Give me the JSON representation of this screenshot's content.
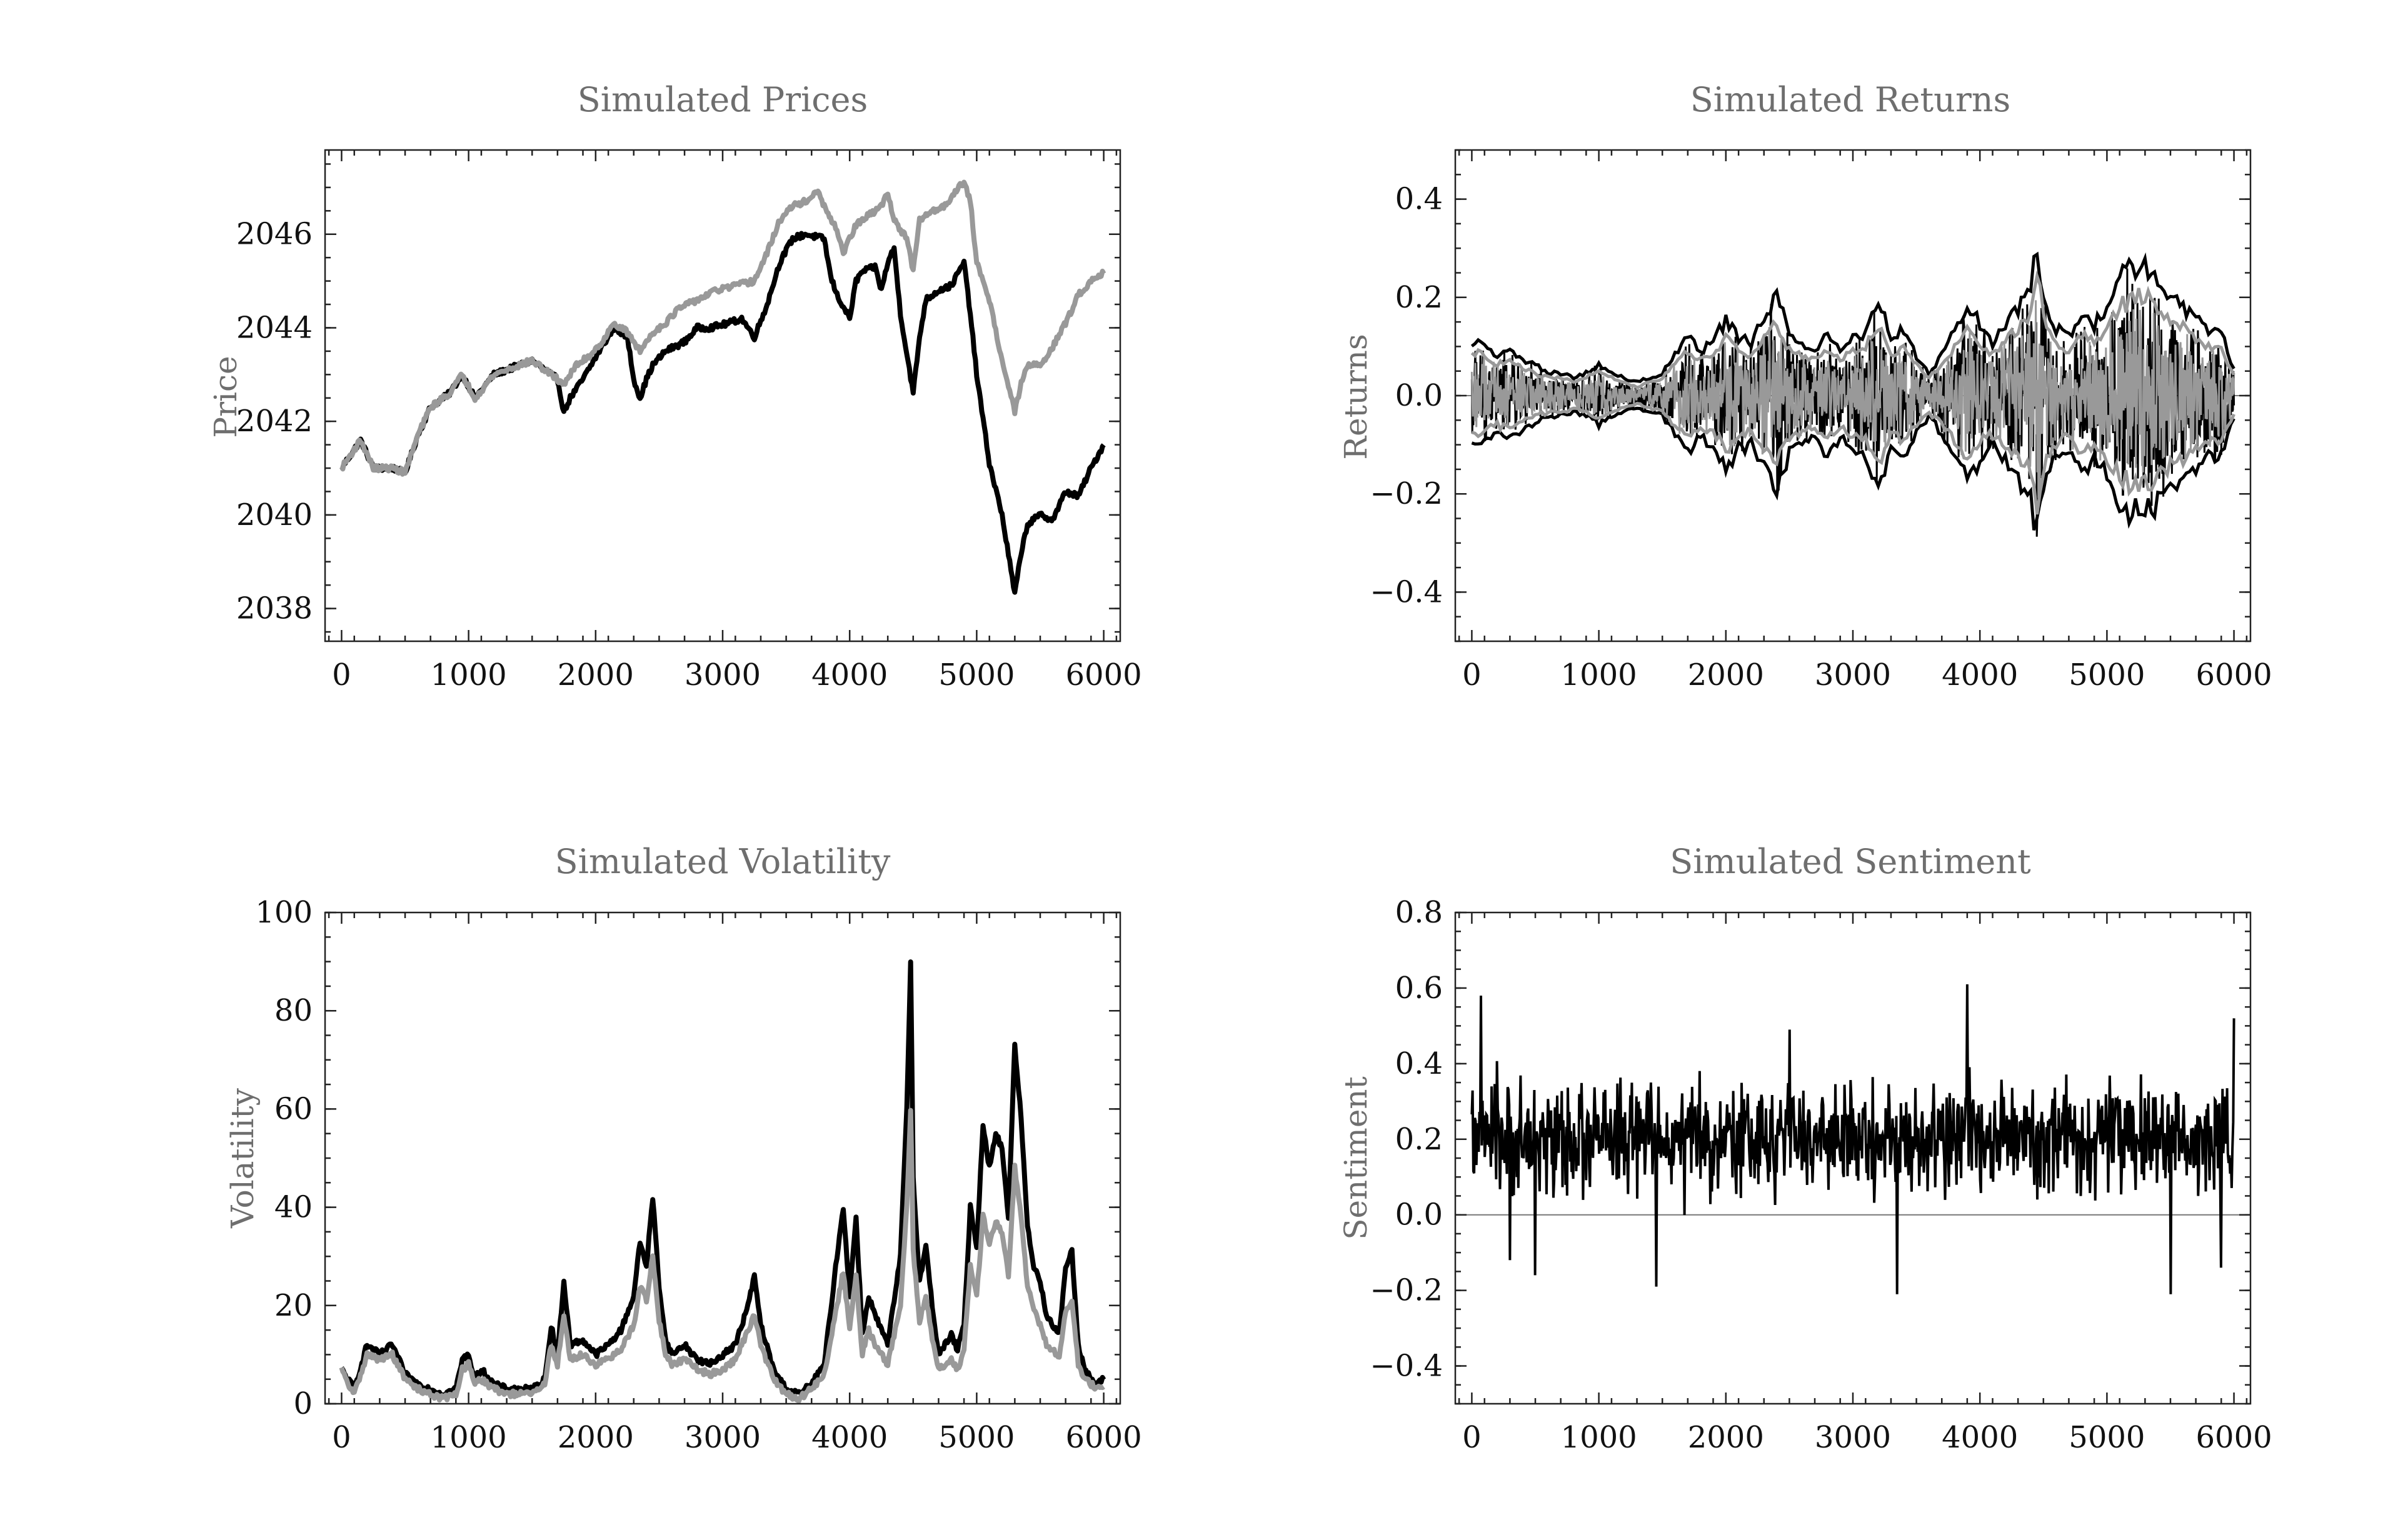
{
  "figure": {
    "panels": [
      {
        "id": "prices",
        "title": "Simulated Prices",
        "ylabel": "Price"
      },
      {
        "id": "returns",
        "title": "Simulated Returns",
        "ylabel": "Returns"
      },
      {
        "id": "volatility",
        "title": "Simulated Volatility",
        "ylabel": "Volatility"
      },
      {
        "id": "sentiment",
        "title": "Simulated Sentiment",
        "ylabel": "Sentiment"
      }
    ]
  },
  "chart_data": [
    {
      "id": "prices",
      "type": "line",
      "title": "Simulated Prices",
      "xlabel": "",
      "ylabel": "Price",
      "xlim": [
        -130,
        6130
      ],
      "ylim": [
        2037.3,
        2047.8
      ],
      "xticks": [
        0,
        1000,
        2000,
        3000,
        4000,
        5000,
        6000
      ],
      "yticks": [
        2038,
        2040,
        2042,
        2044,
        2046
      ],
      "grid": false,
      "colors": {
        "black_series": "#000000",
        "gray_series": "#999999"
      },
      "series": [
        {
          "color": "#000000",
          "x": [
            0,
            150,
            250,
            400,
            500,
            600,
            700,
            850,
            950,
            1050,
            1200,
            1300,
            1400,
            1500,
            1650,
            1700,
            1750,
            1800,
            1900,
            2050,
            2150,
            2250,
            2300,
            2350,
            2400,
            2450,
            2550,
            2700,
            2800,
            2900,
            3050,
            3150,
            3250,
            3350,
            3450,
            3550,
            3650,
            3800,
            3850,
            3900,
            4000,
            4050,
            4100,
            4200,
            4250,
            4300,
            4350,
            4400,
            4500,
            4550,
            4600,
            4700,
            4800,
            4900,
            4950,
            5000,
            5100,
            5200,
            5300,
            5350,
            5400,
            5500,
            5600,
            5700,
            5800,
            5900,
            6000
          ],
          "y": [
            2041.0,
            2041.6,
            2041.0,
            2041.0,
            2040.9,
            2041.7,
            2042.3,
            2042.6,
            2043.0,
            2042.5,
            2043.0,
            2043.1,
            2043.2,
            2043.3,
            2043.0,
            2042.9,
            2042.2,
            2042.5,
            2042.9,
            2043.6,
            2044.0,
            2043.8,
            2042.9,
            2042.5,
            2042.9,
            2043.2,
            2043.5,
            2043.7,
            2044.0,
            2044.0,
            2044.1,
            2044.2,
            2043.8,
            2044.5,
            2045.4,
            2045.9,
            2046.0,
            2045.9,
            2045.1,
            2044.7,
            2044.2,
            2045.0,
            2045.2,
            2045.3,
            2044.8,
            2045.4,
            2045.7,
            2044.3,
            2042.6,
            2043.8,
            2044.6,
            2044.8,
            2044.9,
            2045.4,
            2044.3,
            2043.0,
            2041.1,
            2040.0,
            2038.3,
            2039.2,
            2039.8,
            2040.0,
            2039.9,
            2040.5,
            2040.4,
            2041.0,
            2041.5
          ]
        },
        {
          "color": "#999999",
          "x": [
            0,
            150,
            250,
            400,
            500,
            600,
            700,
            850,
            950,
            1050,
            1200,
            1300,
            1400,
            1500,
            1650,
            1750,
            1850,
            1950,
            2050,
            2150,
            2250,
            2350,
            2450,
            2550,
            2650,
            2800,
            2950,
            3100,
            3250,
            3350,
            3450,
            3550,
            3650,
            3750,
            3850,
            3900,
            3950,
            4050,
            4150,
            4250,
            4300,
            4350,
            4450,
            4500,
            4550,
            4650,
            4750,
            4850,
            4900,
            4950,
            5000,
            5100,
            5200,
            5300,
            5350,
            5400,
            5500,
            5600,
            5700,
            5800,
            5900,
            6000
          ],
          "y": [
            2041.0,
            2041.6,
            2041.0,
            2041.0,
            2040.9,
            2041.7,
            2042.3,
            2042.6,
            2043.0,
            2042.5,
            2043.0,
            2043.1,
            2043.2,
            2043.3,
            2043.0,
            2042.8,
            2043.2,
            2043.4,
            2043.7,
            2044.1,
            2043.9,
            2043.5,
            2043.9,
            2044.1,
            2044.4,
            2044.6,
            2044.8,
            2044.9,
            2045.0,
            2045.6,
            2046.3,
            2046.6,
            2046.7,
            2046.9,
            2046.3,
            2046.1,
            2045.6,
            2046.2,
            2046.4,
            2046.6,
            2046.9,
            2046.3,
            2045.9,
            2045.2,
            2046.3,
            2046.5,
            2046.6,
            2047.0,
            2047.1,
            2046.7,
            2045.4,
            2044.6,
            2043.3,
            2042.2,
            2042.8,
            2043.2,
            2043.2,
            2043.6,
            2044.1,
            2044.7,
            2045.0,
            2045.2
          ]
        }
      ]
    },
    {
      "id": "returns",
      "type": "line",
      "title": "Simulated Returns",
      "xlabel": "",
      "ylabel": "Returns",
      "xlim": [
        -130,
        6130
      ],
      "ylim": [
        -0.5,
        0.5
      ],
      "xticks": [
        0,
        1000,
        2000,
        3000,
        4000,
        5000,
        6000
      ],
      "yticks": [
        -0.4,
        -0.2,
        0.0,
        0.2,
        0.4
      ],
      "ytick_labels": [
        "−0.4",
        "−0.2",
        "0.0",
        "0.2",
        "0.4"
      ],
      "grid": false,
      "zero_line": true,
      "envelope_x": [
        0,
        100,
        200,
        300,
        400,
        500,
        600,
        700,
        800,
        900,
        1000,
        1100,
        1200,
        1300,
        1400,
        1500,
        1600,
        1700,
        1800,
        1900,
        2000,
        2100,
        2200,
        2300,
        2400,
        2500,
        2600,
        2700,
        2800,
        2900,
        3000,
        3100,
        3200,
        3300,
        3400,
        3500,
        3600,
        3700,
        3800,
        3900,
        4000,
        4100,
        4200,
        4300,
        4400,
        4450,
        4500,
        4600,
        4700,
        4800,
        4900,
        5000,
        5100,
        5200,
        5300,
        5400,
        5500,
        5600,
        5700,
        5800,
        5900,
        6000
      ],
      "series": [
        {
          "color": "#000000",
          "envelope": [
            0.12,
            0.11,
            0.09,
            0.1,
            0.08,
            0.07,
            0.05,
            0.05,
            0.04,
            0.05,
            0.07,
            0.05,
            0.04,
            0.03,
            0.04,
            0.05,
            0.09,
            0.13,
            0.1,
            0.12,
            0.17,
            0.13,
            0.12,
            0.18,
            0.22,
            0.14,
            0.12,
            0.1,
            0.14,
            0.1,
            0.13,
            0.14,
            0.22,
            0.12,
            0.15,
            0.09,
            0.05,
            0.09,
            0.15,
            0.21,
            0.16,
            0.12,
            0.16,
            0.2,
            0.24,
            0.34,
            0.22,
            0.15,
            0.13,
            0.18,
            0.16,
            0.2,
            0.27,
            0.28,
            0.3,
            0.25,
            0.22,
            0.2,
            0.17,
            0.15,
            0.14,
            0.06
          ]
        },
        {
          "color": "#999999",
          "envelope": [
            0.1,
            0.09,
            0.07,
            0.08,
            0.06,
            0.05,
            0.04,
            0.04,
            0.03,
            0.04,
            0.06,
            0.04,
            0.03,
            0.02,
            0.03,
            0.04,
            0.07,
            0.1,
            0.08,
            0.09,
            0.13,
            0.1,
            0.09,
            0.13,
            0.16,
            0.1,
            0.09,
            0.08,
            0.1,
            0.08,
            0.1,
            0.11,
            0.16,
            0.09,
            0.11,
            0.07,
            0.04,
            0.07,
            0.11,
            0.15,
            0.12,
            0.09,
            0.12,
            0.15,
            0.18,
            0.28,
            0.17,
            0.11,
            0.1,
            0.14,
            0.12,
            0.15,
            0.2,
            0.21,
            0.23,
            0.19,
            0.16,
            0.15,
            0.13,
            0.11,
            0.1,
            0.05
          ]
        }
      ]
    },
    {
      "id": "volatility",
      "type": "line",
      "title": "Simulated Volatility",
      "xlabel": "",
      "ylabel": "Volatility",
      "xlim": [
        -130,
        6130
      ],
      "ylim": [
        0,
        100
      ],
      "xticks": [
        0,
        1000,
        2000,
        3000,
        4000,
        5000,
        6000
      ],
      "yticks": [
        0,
        20,
        40,
        60,
        80,
        100
      ],
      "grid": false,
      "series": [
        {
          "color": "#000000",
          "x": [
            0,
            50,
            100,
            200,
            300,
            400,
            500,
            600,
            700,
            800,
            900,
            950,
            1000,
            1050,
            1100,
            1200,
            1300,
            1400,
            1500,
            1600,
            1650,
            1700,
            1750,
            1800,
            1900,
            2000,
            2100,
            2200,
            2300,
            2350,
            2400,
            2450,
            2500,
            2550,
            2600,
            2700,
            2800,
            2900,
            3000,
            3100,
            3200,
            3250,
            3300,
            3400,
            3500,
            3600,
            3700,
            3800,
            3900,
            3950,
            4000,
            4050,
            4100,
            4150,
            4200,
            4300,
            4400,
            4450,
            4480,
            4500,
            4550,
            4600,
            4650,
            4700,
            4750,
            4800,
            4850,
            4900,
            4950,
            5000,
            5050,
            5100,
            5150,
            5200,
            5250,
            5300,
            5350,
            5400,
            5450,
            5500,
            5550,
            5600,
            5650,
            5700,
            5750,
            5800,
            5850,
            5900,
            5950,
            6000
          ],
          "y": [
            7,
            5,
            3,
            12,
            10,
            12,
            6,
            4,
            3,
            2,
            3,
            9,
            10,
            5,
            7,
            4,
            3,
            3,
            3,
            5,
            16,
            10,
            25,
            12,
            13,
            10,
            12,
            15,
            22,
            33,
            28,
            42,
            24,
            13,
            10,
            12,
            9,
            8,
            10,
            12,
            20,
            26,
            16,
            7,
            3,
            2,
            4,
            8,
            30,
            40,
            22,
            38,
            14,
            22,
            18,
            12,
            30,
            60,
            90,
            46,
            25,
            32,
            20,
            10,
            12,
            14,
            11,
            16,
            40,
            32,
            57,
            48,
            55,
            52,
            38,
            73,
            58,
            36,
            28,
            25,
            18,
            16,
            14,
            28,
            31,
            12,
            7,
            5,
            4,
            5
          ]
        },
        {
          "color": "#999999",
          "x": [
            0,
            50,
            100,
            200,
            300,
            400,
            500,
            600,
            700,
            800,
            900,
            950,
            1000,
            1050,
            1100,
            1200,
            1300,
            1400,
            1500,
            1600,
            1650,
            1700,
            1750,
            1800,
            1900,
            2000,
            2100,
            2200,
            2300,
            2350,
            2400,
            2450,
            2500,
            2550,
            2600,
            2700,
            2800,
            2900,
            3000,
            3100,
            3200,
            3250,
            3300,
            3400,
            3500,
            3600,
            3700,
            3800,
            3900,
            3950,
            4000,
            4050,
            4100,
            4150,
            4200,
            4300,
            4400,
            4450,
            4480,
            4500,
            4550,
            4600,
            4650,
            4700,
            4750,
            4800,
            4850,
            4900,
            4950,
            5000,
            5050,
            5100,
            5150,
            5200,
            5250,
            5300,
            5350,
            5400,
            5450,
            5500,
            5550,
            5600,
            5650,
            5700,
            5750,
            5800,
            5850,
            5900,
            5950,
            6000
          ],
          "y": [
            7,
            4,
            2,
            10,
            9,
            10,
            5,
            3,
            2,
            1,
            2,
            7,
            8,
            4,
            5,
            3,
            2,
            2,
            2,
            4,
            12,
            8,
            18,
            9,
            10,
            8,
            9,
            11,
            16,
            24,
            21,
            30,
            17,
            10,
            8,
            9,
            7,
            6,
            7,
            9,
            15,
            18,
            12,
            5,
            2,
            1,
            3,
            6,
            20,
            27,
            15,
            26,
            10,
            15,
            12,
            8,
            20,
            40,
            60,
            31,
            17,
            22,
            13,
            7,
            8,
            9,
            7,
            11,
            28,
            22,
            38,
            33,
            37,
            35,
            26,
            48,
            38,
            24,
            19,
            16,
            12,
            11,
            9,
            19,
            21,
            8,
            5,
            4,
            3,
            4
          ]
        }
      ]
    },
    {
      "id": "sentiment",
      "type": "line",
      "title": "Simulated Sentiment",
      "xlabel": "",
      "ylabel": "Sentiment",
      "xlim": [
        -130,
        6130
      ],
      "ylim": [
        -0.5,
        0.8
      ],
      "xticks": [
        0,
        1000,
        2000,
        3000,
        4000,
        5000,
        6000
      ],
      "yticks": [
        -0.4,
        -0.2,
        0.0,
        0.2,
        0.4,
        0.6,
        0.8
      ],
      "ytick_labels": [
        "−0.4",
        "−0.2",
        "0.0",
        "0.2",
        "0.4",
        "0.6",
        "0.8"
      ],
      "grid": false,
      "zero_line": true,
      "series": [
        {
          "color": "#000000",
          "mean": 0.2,
          "band": [
            0.02,
            0.38
          ],
          "extremes": [
            [
              70,
              0.58
            ],
            [
              300,
              -0.12
            ],
            [
              500,
              -0.16
            ],
            [
              1450,
              -0.19
            ],
            [
              2500,
              0.49
            ],
            [
              3350,
              -0.21
            ],
            [
              3900,
              0.61
            ],
            [
              5500,
              -0.21
            ],
            [
              5900,
              -0.14
            ],
            [
              6000,
              0.52
            ]
          ]
        }
      ]
    }
  ]
}
